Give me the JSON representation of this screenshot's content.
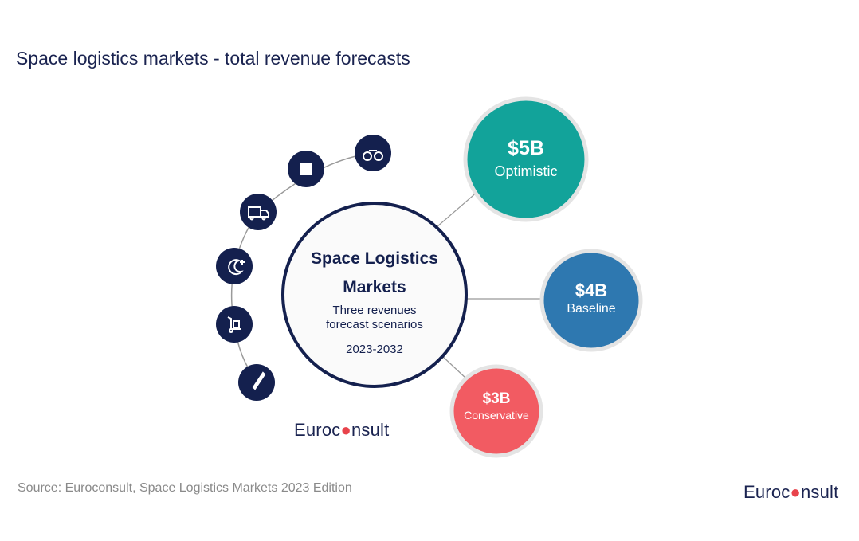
{
  "title": "Space logistics markets - total revenue forecasts",
  "center": {
    "title_line1": "Space Logistics",
    "title_line2": "Markets",
    "sub_line1": "Three revenues",
    "sub_line2": "forecast scenarios",
    "years": "2023-2032"
  },
  "scenarios": [
    {
      "value": "$5B",
      "label": "Optimistic",
      "color": "#12a39a"
    },
    {
      "value": "$4B",
      "label": "Baseline",
      "color": "#2e78b0"
    },
    {
      "value": "$3B",
      "label": "Conservative",
      "color": "#f25b62"
    }
  ],
  "icons": [
    "binoculars-icon",
    "puzzle-icon",
    "truck-icon",
    "moon-icon",
    "hand-truck-icon",
    "rocket-icon"
  ],
  "logo_text": "Euroconsult",
  "source": "Source: Euroconsult, Space Logistics Markets 2023 Edition",
  "colors": {
    "navy": "#14204e"
  }
}
